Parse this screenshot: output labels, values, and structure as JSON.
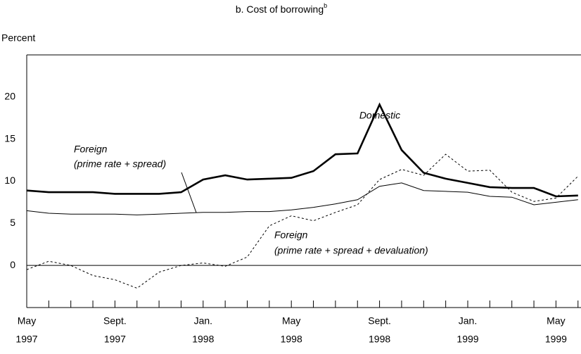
{
  "chart_data": {
    "type": "line",
    "title": "b. Cost of borrowing",
    "title_superscript": "b",
    "y_label": "Percent",
    "categories": [
      [
        "May",
        "1997"
      ],
      null,
      null,
      null,
      [
        "Sept.",
        "1997"
      ],
      null,
      null,
      null,
      [
        "Jan.",
        "1998"
      ],
      null,
      null,
      null,
      [
        "May",
        "1998"
      ],
      null,
      null,
      null,
      [
        "Sept.",
        "1998"
      ],
      null,
      null,
      null,
      [
        "Jan.",
        "1999"
      ],
      null,
      null,
      null,
      [
        "May",
        "1999"
      ],
      null
    ],
    "ylim": [
      -5,
      25
    ],
    "yticks": [
      0,
      5,
      10,
      15,
      20
    ],
    "series": [
      {
        "color": "#000",
        "width": 2.6,
        "dash": false,
        "values": [
          8.9,
          8.7,
          8.7,
          8.7,
          8.5,
          8.5,
          8.5,
          8.7,
          10.2,
          10.7,
          10.2,
          10.3,
          10.4,
          11.2,
          13.2,
          13.3,
          19.1,
          13.7,
          11.0,
          10.3,
          9.8,
          9.3,
          9.2,
          9.2,
          8.2,
          8.3
        ]
      },
      {
        "color": "#000",
        "width": 1,
        "dash": false,
        "values": [
          6.5,
          6.2,
          6.1,
          6.1,
          6.1,
          6.0,
          6.1,
          6.2,
          6.3,
          6.3,
          6.4,
          6.4,
          6.6,
          6.9,
          7.3,
          7.8,
          9.4,
          9.8,
          8.9,
          8.8,
          8.7,
          8.2,
          8.1,
          7.2,
          7.5,
          7.8
        ]
      },
      {
        "color": "#000",
        "width": 1,
        "dash": true,
        "values": [
          -0.5,
          0.5,
          0.0,
          -1.2,
          -1.7,
          -2.7,
          -0.8,
          0.0,
          0.3,
          -0.1,
          1.0,
          4.7,
          5.9,
          5.3,
          6.3,
          7.2,
          10.2,
          11.4,
          10.7,
          13.2,
          11.2,
          11.3,
          8.7,
          7.6,
          8.0,
          10.6
        ]
      }
    ],
    "annotations": [
      [
        "Domestic"
      ],
      [
        "Foreign",
        "(prime rate + spread)"
      ],
      [
        "Foreign",
        "(prime rate + spread + devaluation)"
      ]
    ]
  }
}
